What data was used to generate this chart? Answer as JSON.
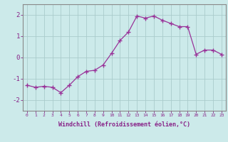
{
  "x": [
    0,
    1,
    2,
    3,
    4,
    5,
    6,
    7,
    8,
    9,
    10,
    11,
    12,
    13,
    14,
    15,
    16,
    17,
    18,
    19,
    20,
    21,
    22,
    23
  ],
  "y": [
    -1.3,
    -1.4,
    -1.35,
    -1.4,
    -1.65,
    -1.3,
    -0.9,
    -0.65,
    -0.6,
    -0.35,
    0.2,
    0.8,
    1.2,
    1.95,
    1.85,
    1.95,
    1.75,
    1.6,
    1.45,
    1.45,
    0.15,
    0.35,
    0.35,
    0.15
  ],
  "line_color": "#993399",
  "marker": "+",
  "marker_size": 4.0,
  "linewidth": 0.9,
  "xlabel": "Windchill (Refroidissement éolien,°C)",
  "ylim": [
    -2.5,
    2.5
  ],
  "xlim": [
    -0.5,
    23.5
  ],
  "yticks": [
    -2,
    -1,
    0,
    1,
    2
  ],
  "bg_color": "#cceaea",
  "grid_color": "#aacccc",
  "spine_color": "#888888",
  "label_color": "#882288",
  "font_family": "monospace"
}
